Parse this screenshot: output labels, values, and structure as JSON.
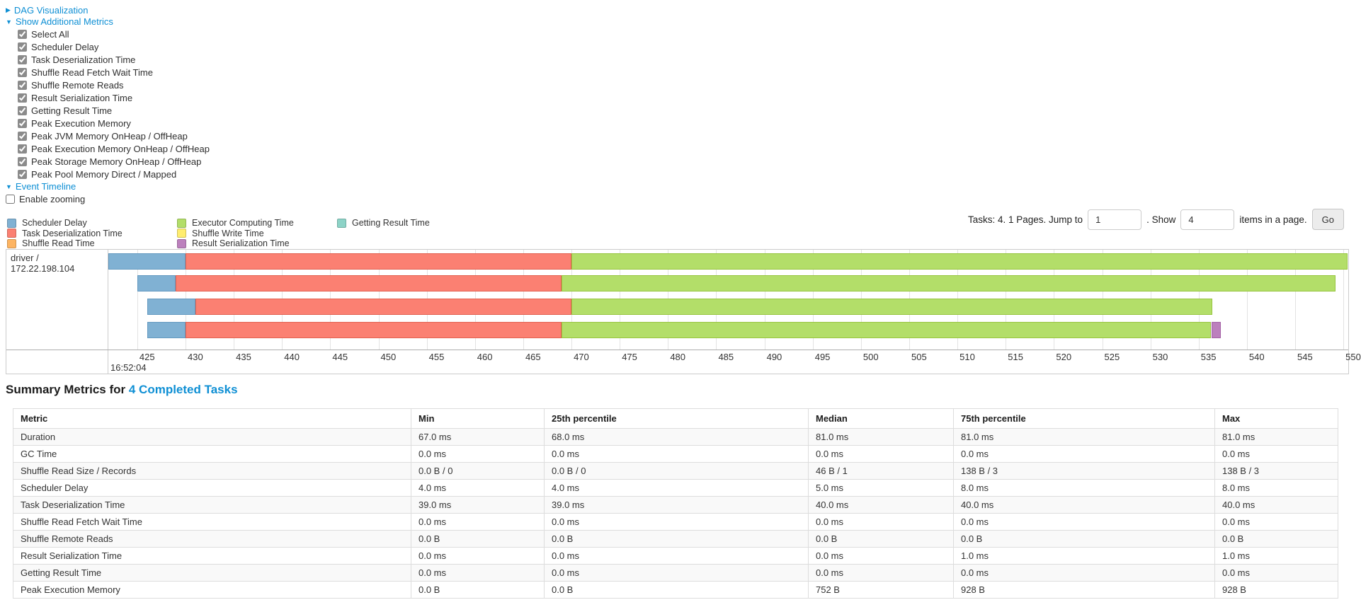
{
  "toggles": {
    "dag_visualization": "DAG Visualization",
    "show_additional_metrics": "Show Additional Metrics",
    "event_timeline": "Event Timeline"
  },
  "metric_checkboxes": [
    {
      "label": "Select All",
      "checked": true
    },
    {
      "label": "Scheduler Delay",
      "checked": true
    },
    {
      "label": "Task Deserialization Time",
      "checked": true
    },
    {
      "label": "Shuffle Read Fetch Wait Time",
      "checked": true
    },
    {
      "label": "Shuffle Remote Reads",
      "checked": true
    },
    {
      "label": "Result Serialization Time",
      "checked": true
    },
    {
      "label": "Getting Result Time",
      "checked": true
    },
    {
      "label": "Peak Execution Memory",
      "checked": true
    },
    {
      "label": "Peak JVM Memory OnHeap / OffHeap",
      "checked": true
    },
    {
      "label": "Peak Execution Memory OnHeap / OffHeap",
      "checked": true
    },
    {
      "label": "Peak Storage Memory OnHeap / OffHeap",
      "checked": true
    },
    {
      "label": "Peak Pool Memory Direct / Mapped",
      "checked": true
    }
  ],
  "enable_zooming": {
    "label": "Enable zooming",
    "checked": false
  },
  "pagination": {
    "tasks_text": "Tasks: 4. 1 Pages. Jump to",
    "jump_value": "1",
    "show_label": ". Show",
    "show_value": "4",
    "items_text": "items in a page.",
    "go_label": "Go"
  },
  "colors": {
    "scheduler_delay": {
      "fill": "#80B1D3",
      "border": "#6399c0"
    },
    "task_deserialization": {
      "fill": "#FB8072",
      "border": "#e2604f"
    },
    "shuffle_read": {
      "fill": "#FDB462",
      "border": "#e89a43"
    },
    "executor_computing": {
      "fill": "#B3DE69",
      "border": "#97c53e"
    },
    "shuffle_write": {
      "fill": "#FFED6F",
      "border": "#e0cd4b"
    },
    "result_serialization": {
      "fill": "#BC80BD",
      "border": "#a361a4"
    },
    "getting_result": {
      "fill": "#8DD3C7",
      "border": "#6bbcac"
    }
  },
  "legend_columns": [
    [
      {
        "key": "scheduler_delay",
        "label": "Scheduler Delay"
      },
      {
        "key": "task_deserialization",
        "label": "Task Deserialization Time"
      },
      {
        "key": "shuffle_read",
        "label": "Shuffle Read Time"
      }
    ],
    [
      {
        "key": "executor_computing",
        "label": "Executor Computing Time"
      },
      {
        "key": "shuffle_write",
        "label": "Shuffle Write Time"
      },
      {
        "key": "result_serialization",
        "label": "Result Serialization Time"
      }
    ],
    [
      {
        "key": "getting_result",
        "label": "Getting Result Time"
      }
    ]
  ],
  "chart_data": {
    "type": "timeline",
    "row_label": "driver / 172.22.198.104",
    "x_axis": {
      "time_of_day": "16:52:04",
      "unit": "ms within 16:52:04",
      "tick_start": 425,
      "tick_end": 550,
      "tick_step": 5,
      "domain": [
        422,
        550.5
      ]
    },
    "tasks": [
      {
        "segments": [
          {
            "metric": "scheduler_delay",
            "start": 422.0,
            "end": 430.0
          },
          {
            "metric": "task_deserialization",
            "start": 430.0,
            "end": 470.0
          },
          {
            "metric": "executor_computing",
            "start": 470.0,
            "end": 550.4
          }
        ]
      },
      {
        "segments": [
          {
            "metric": "scheduler_delay",
            "start": 425.0,
            "end": 429.0
          },
          {
            "metric": "task_deserialization",
            "start": 429.0,
            "end": 469.0
          },
          {
            "metric": "executor_computing",
            "start": 469.0,
            "end": 549.2
          }
        ]
      },
      {
        "segments": [
          {
            "metric": "scheduler_delay",
            "start": 426.0,
            "end": 431.0
          },
          {
            "metric": "task_deserialization",
            "start": 431.0,
            "end": 470.0
          },
          {
            "metric": "executor_computing",
            "start": 470.0,
            "end": 536.4
          }
        ]
      },
      {
        "segments": [
          {
            "metric": "scheduler_delay",
            "start": 426.0,
            "end": 430.0
          },
          {
            "metric": "task_deserialization",
            "start": 430.0,
            "end": 469.0
          },
          {
            "metric": "executor_computing",
            "start": 469.0,
            "end": 536.3
          },
          {
            "metric": "result_serialization",
            "start": 536.3,
            "end": 537.3
          }
        ]
      }
    ]
  },
  "summary_table": {
    "title_prefix": "Summary Metrics for",
    "title_link": "4 Completed Tasks",
    "columns": [
      "Metric",
      "Min",
      "25th percentile",
      "Median",
      "75th percentile",
      "Max"
    ],
    "rows": [
      {
        "metric": "Duration",
        "values": [
          "67.0 ms",
          "68.0 ms",
          "81.0 ms",
          "81.0 ms",
          "81.0 ms"
        ]
      },
      {
        "metric": "GC Time",
        "values": [
          "0.0 ms",
          "0.0 ms",
          "0.0 ms",
          "0.0 ms",
          "0.0 ms"
        ]
      },
      {
        "metric": "Shuffle Read Size / Records",
        "values": [
          "0.0 B / 0",
          "0.0 B / 0",
          "46 B / 1",
          "138 B / 3",
          "138 B / 3"
        ]
      },
      {
        "metric": "Scheduler Delay",
        "values": [
          "4.0 ms",
          "4.0 ms",
          "5.0 ms",
          "8.0 ms",
          "8.0 ms"
        ]
      },
      {
        "metric": "Task Deserialization Time",
        "values": [
          "39.0 ms",
          "39.0 ms",
          "40.0 ms",
          "40.0 ms",
          "40.0 ms"
        ]
      },
      {
        "metric": "Shuffle Read Fetch Wait Time",
        "values": [
          "0.0 ms",
          "0.0 ms",
          "0.0 ms",
          "0.0 ms",
          "0.0 ms"
        ]
      },
      {
        "metric": "Shuffle Remote Reads",
        "values": [
          "0.0 B",
          "0.0 B",
          "0.0 B",
          "0.0 B",
          "0.0 B"
        ]
      },
      {
        "metric": "Result Serialization Time",
        "values": [
          "0.0 ms",
          "0.0 ms",
          "0.0 ms",
          "1.0 ms",
          "1.0 ms"
        ]
      },
      {
        "metric": "Getting Result Time",
        "values": [
          "0.0 ms",
          "0.0 ms",
          "0.0 ms",
          "0.0 ms",
          "0.0 ms"
        ]
      },
      {
        "metric": "Peak Execution Memory",
        "values": [
          "0.0 B",
          "0.0 B",
          "752 B",
          "928 B",
          "928 B"
        ]
      }
    ]
  }
}
